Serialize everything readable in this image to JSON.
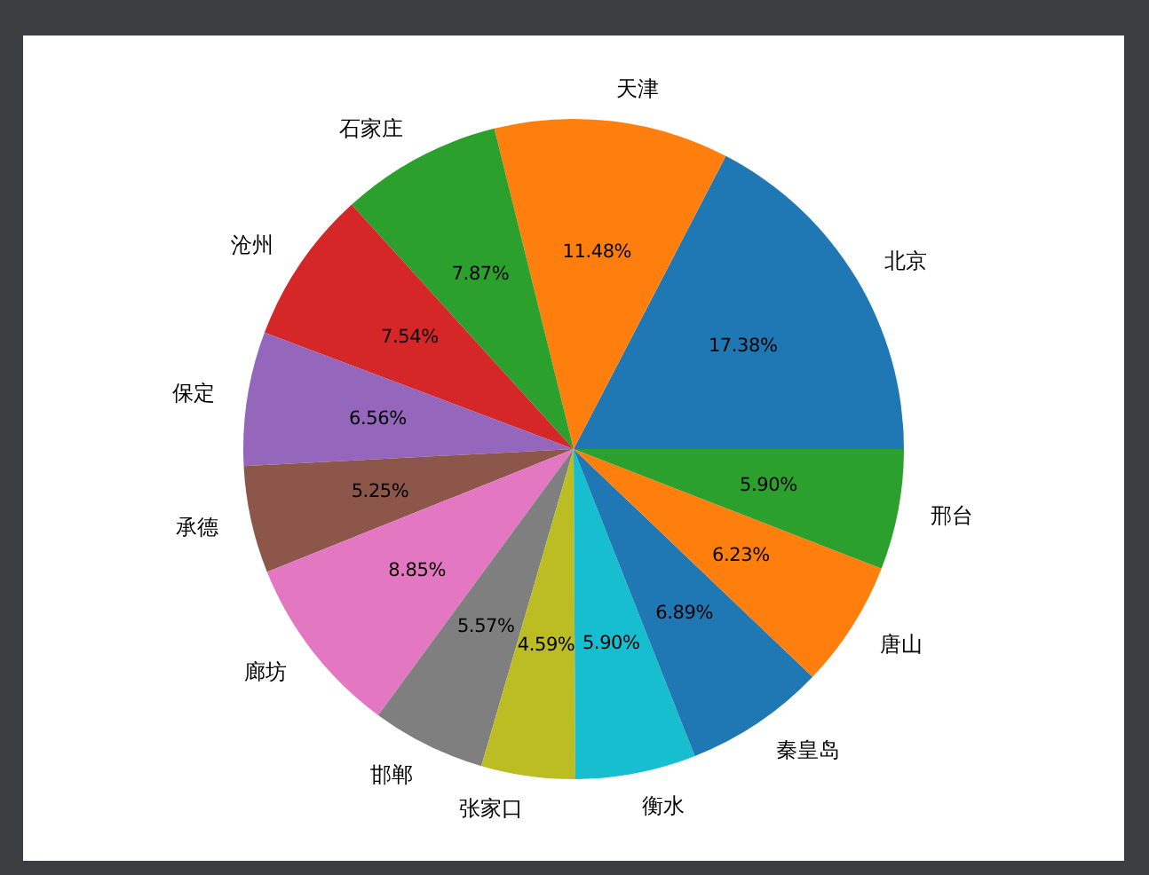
{
  "chart_data": {
    "type": "pie",
    "categories": [
      "北京",
      "天津",
      "石家庄",
      "沧州",
      "保定",
      "承德",
      "廊坊",
      "邯郸",
      "张家口",
      "衡水",
      "秦皇岛",
      "唐山",
      "邢台"
    ],
    "values": [
      17.38,
      11.48,
      7.87,
      7.54,
      6.56,
      5.25,
      8.85,
      5.57,
      4.59,
      5.9,
      6.89,
      6.23,
      5.9
    ],
    "colors": [
      "#1f77b4",
      "#ff7f0e",
      "#2ca02c",
      "#d62728",
      "#9467bd",
      "#8c564b",
      "#e377c2",
      "#7f7f7f",
      "#bcbd22",
      "#17becf",
      "#1f77b4",
      "#ff7f0e",
      "#2ca02c"
    ],
    "value_labels": [
      "17.38%",
      "11.48%",
      "7.87%",
      "7.54%",
      "6.56%",
      "5.25%",
      "8.85%",
      "5.57%",
      "4.59%",
      "5.90%",
      "6.89%",
      "6.23%",
      "5.90%"
    ]
  }
}
